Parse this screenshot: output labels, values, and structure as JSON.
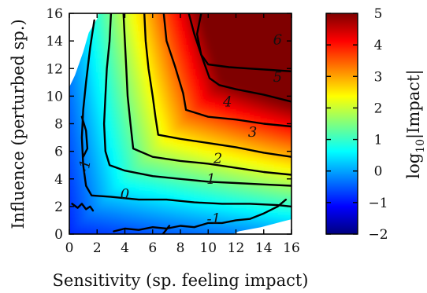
{
  "chart_data": {
    "type": "heatmap",
    "xlabel": "Sensitivity (sp. feeling impact)",
    "ylabel": "Influence (perturbed sp.)",
    "xlim": [
      0,
      16
    ],
    "ylim": [
      0,
      16
    ],
    "x_ticks": [
      "0",
      "2",
      "4",
      "6",
      "8",
      "10",
      "12",
      "14",
      "16"
    ],
    "y_ticks": [
      "0",
      "2",
      "4",
      "6",
      "8",
      "10",
      "12",
      "14",
      "16"
    ],
    "colorbar": {
      "label": "log10|Impact|",
      "label_base": "log",
      "label_sub": "10",
      "label_tail": "|Impact|",
      "range": [
        -2,
        5
      ],
      "ticks": [
        "−2",
        "−1",
        "0",
        "1",
        "2",
        "3",
        "4",
        "5"
      ],
      "colormap": "jet"
    },
    "contour_levels": [
      {
        "level": -1,
        "text": "-1"
      },
      {
        "level": 0,
        "text": "0"
      },
      {
        "level": 1,
        "text": "1"
      },
      {
        "level": 2,
        "text": "2"
      },
      {
        "level": 3,
        "text": "3"
      },
      {
        "level": 4,
        "text": "4"
      },
      {
        "level": 5,
        "text": "5"
      },
      {
        "level": 6,
        "text": "6"
      }
    ],
    "colors": {
      "jet": [
        "#00007f",
        "#0000ff",
        "#007fff",
        "#00ffff",
        "#7fff7f",
        "#ffff00",
        "#ff7f00",
        "#ff0000",
        "#7f0000"
      ],
      "contour_line": "#000000",
      "frame": "#000000"
    }
  }
}
